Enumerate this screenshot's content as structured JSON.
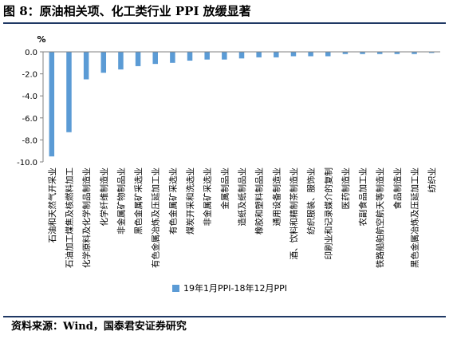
{
  "header": {
    "title": "图 8：原油相关项、化工类行业 PPI 放缓显著"
  },
  "footer": {
    "source": "资料来源：Wind，国泰君安证券研究"
  },
  "chart_data": {
    "type": "bar",
    "unit_label": "%",
    "categories": [
      "石油和天然气开采业",
      "石油加工煤焦及核燃料加工",
      "化学原料及化学制品制造业",
      "化学纤维制造业",
      "非金属矿物制品业",
      "黑色金属矿采选业",
      "有色金属冶炼及压延加工业",
      "有色金属矿采选业",
      "煤炭开采和洗选业",
      "非金属矿采选业",
      "金属制品业",
      "造纸及纸制品业",
      "橡胶和塑料制品业",
      "通用设备制造业",
      "酒、饮料和精制茶制造业",
      "纺织服装、服饰业",
      "印刷业和记录媒介的复制",
      "医药制造业",
      "农副食品加工业",
      "铁路船舶航空航天等制造业",
      "食品制造业",
      "黑色金属冶炼及压延加工业",
      "纺织业"
    ],
    "series": [
      {
        "name": "19年1月PPI-18年12月PPI",
        "color": "#5b9bd5",
        "values": [
          -9.5,
          -7.3,
          -2.5,
          -1.9,
          -1.6,
          -1.3,
          -1.1,
          -1.0,
          -0.8,
          -0.7,
          -0.7,
          -0.6,
          -0.5,
          -0.5,
          -0.4,
          -0.4,
          -0.4,
          -0.2,
          -0.2,
          -0.2,
          -0.2,
          -0.2,
          -0.1
        ]
      }
    ],
    "ylim": [
      -10,
      0
    ],
    "yticks": [
      0,
      -2,
      -4,
      -6,
      -8,
      -10
    ],
    "ytick_labels": [
      "0.0",
      "-2.0",
      "-4.0",
      "-6.0",
      "-8.0",
      "-10.0"
    ],
    "legend": "bottom",
    "grid": false
  }
}
